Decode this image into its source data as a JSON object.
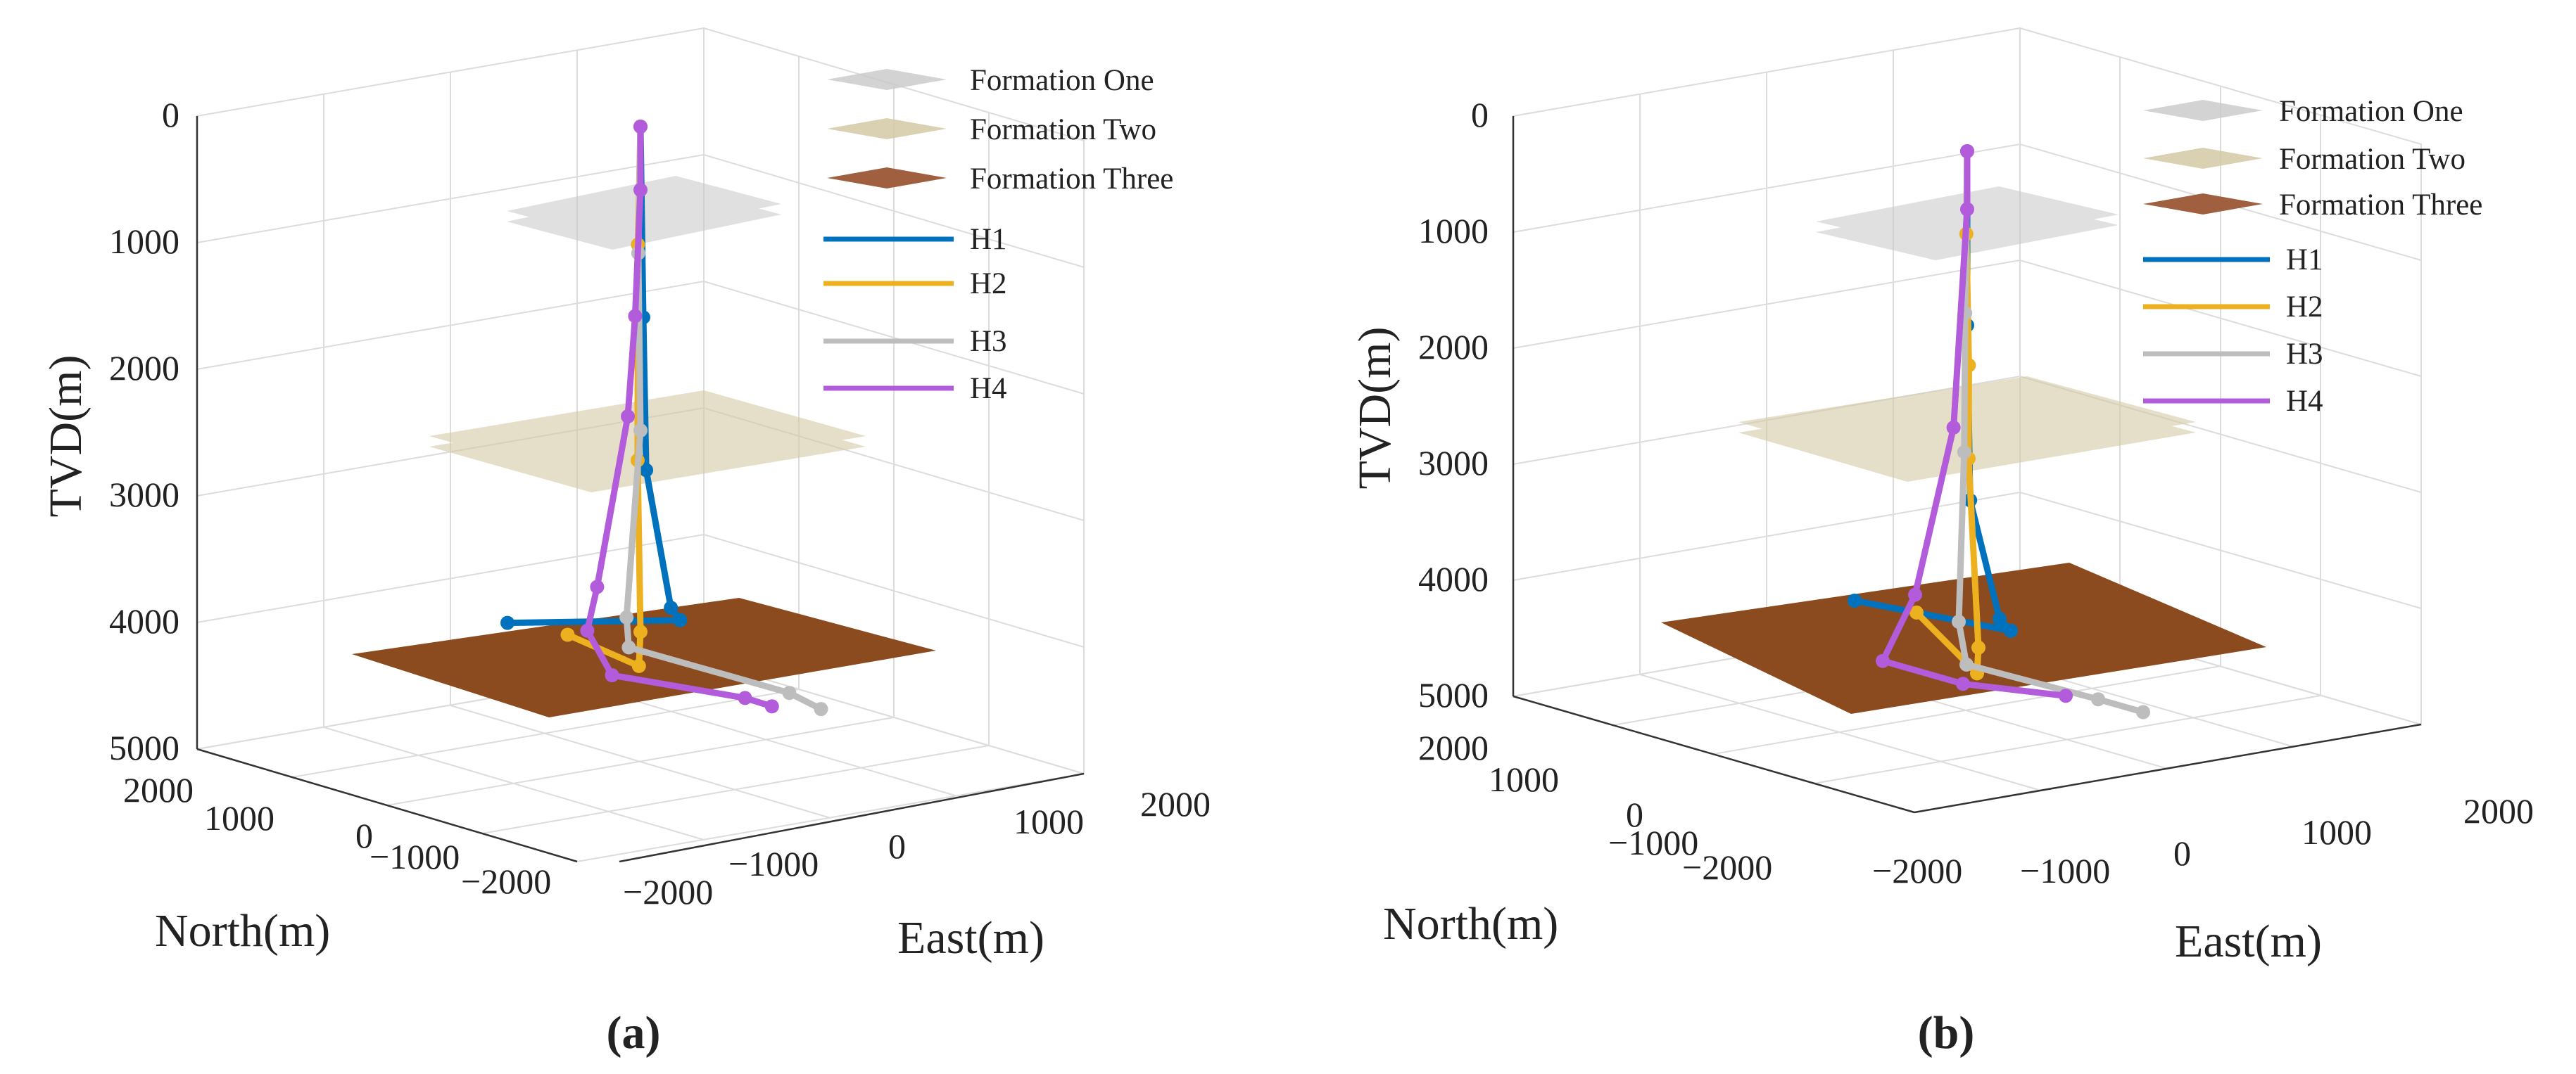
{
  "chart_data": [
    {
      "panel": "(a)",
      "type": "line3d",
      "title": "",
      "zlabel": "TVD(m)",
      "xlabel": "East(m)",
      "ylabel": "North(m)",
      "z_ticks": [
        "0",
        "1000",
        "2000",
        "3000",
        "4000",
        "5000"
      ],
      "x_ticks": [
        "−2000",
        "−1000",
        "0",
        "1000",
        "2000"
      ],
      "y_ticks": [
        "2000",
        "1000",
        "0",
        "−1000",
        "−2000"
      ],
      "zlim": [
        0,
        5000
      ],
      "xlim": [
        -2000,
        2000
      ],
      "ylim": [
        -2000,
        2000
      ],
      "formations": [
        {
          "name": "Formation One",
          "tvd": 800,
          "color": "#b8b8b8"
        },
        {
          "name": "Formation Two",
          "tvd": 2550,
          "color": "#d4c9a4"
        },
        {
          "name": "Formation Three",
          "tvd": 4250,
          "color": "#8b4b1e"
        }
      ],
      "series": [
        {
          "name": "H1",
          "color": "#0072BD",
          "points": [
            [
              0,
              0,
              0
            ],
            [
              30,
              0,
              1500
            ],
            [
              60,
              0,
              2700
            ],
            [
              120,
              -150,
              3800
            ],
            [
              150,
              -200,
              3900
            ],
            [
              -600,
              600,
              3950
            ]
          ]
        },
        {
          "name": "H2",
          "color": "#EDB120",
          "points": [
            [
              0,
              0,
              0
            ],
            [
              80,
              80,
              900
            ],
            [
              90,
              90,
              2600
            ],
            [
              400,
              300,
              3850
            ],
            [
              450,
              350,
              4100
            ],
            [
              -100,
              500,
              3950
            ]
          ]
        },
        {
          "name": "H3",
          "color": "#BDBDBD",
          "points": [
            [
              0,
              0,
              0
            ],
            [
              -10,
              10,
              1000
            ],
            [
              0,
              0,
              2400
            ],
            [
              -120,
              20,
              3900
            ],
            [
              -150,
              -20,
              4150
            ],
            [
              500,
              -800,
              4500
            ],
            [
              700,
              -900,
              4600
            ]
          ]
        },
        {
          "name": "H4",
          "color": "#B25BDB",
          "points": [
            [
              0,
              0,
              0
            ],
            [
              0,
              0,
              500
            ],
            [
              -30,
              20,
              1500
            ],
            [
              -80,
              40,
              2300
            ],
            [
              -350,
              80,
              3700
            ],
            [
              -400,
              120,
              4050
            ],
            [
              -300,
              0,
              4400
            ],
            [
              300,
              -600,
              4550
            ],
            [
              450,
              -700,
              4600
            ]
          ]
        }
      ]
    },
    {
      "panel": "(b)",
      "type": "line3d",
      "title": "",
      "zlabel": "TVD(m)",
      "xlabel": "East(m)",
      "ylabel": "North(m)",
      "z_ticks": [
        "0",
        "1000",
        "2000",
        "3000",
        "4000",
        "5000"
      ],
      "x_ticks": [
        "−2000",
        "−1000",
        "0",
        "1000",
        "2000"
      ],
      "y_ticks": [
        "2000",
        "1000",
        "0",
        "−1000",
        "−2000"
      ],
      "zlim": [
        0,
        5000
      ],
      "xlim": [
        -2000,
        2000
      ],
      "ylim": [
        -2000,
        2000
      ],
      "formations": [
        {
          "name": "Formation One",
          "tvd": 800,
          "color": "#b8b8b8"
        },
        {
          "name": "Formation Two",
          "tvd": 2550,
          "color": "#d4c9a4"
        },
        {
          "name": "Formation Three",
          "tvd": 4250,
          "color": "#8b4b1e"
        }
      ],
      "series": [
        {
          "name": "H1",
          "color": "#0072BD",
          "points": [
            [
              0,
              0,
              0
            ],
            [
              0,
              0,
              1500
            ],
            [
              30,
              0,
              3000
            ],
            [
              200,
              -100,
              4000
            ],
            [
              250,
              -150,
              4100
            ],
            [
              -500,
              500,
              3900
            ]
          ]
        },
        {
          "name": "H2",
          "color": "#EDB120",
          "points": [
            [
              0,
              0,
              0
            ],
            [
              30,
              30,
              700
            ],
            [
              120,
              80,
              1800
            ],
            [
              130,
              90,
              2600
            ],
            [
              500,
              300,
              4100
            ],
            [
              550,
              350,
              4300
            ],
            [
              0,
              400,
              3900
            ]
          ]
        },
        {
          "name": "H3",
          "color": "#BDBDBD",
          "points": [
            [
              0,
              0,
              0
            ],
            [
              -20,
              0,
              1400
            ],
            [
              -30,
              0,
              2600
            ],
            [
              -150,
              -50,
              4100
            ],
            [
              -200,
              -150,
              4500
            ],
            [
              300,
              -800,
              4800
            ],
            [
              500,
              -1000,
              4900
            ]
          ]
        },
        {
          "name": "H4",
          "color": "#B25BDB",
          "points": [
            [
              0,
              0,
              0
            ],
            [
              0,
              0,
              500
            ],
            [
              -100,
              30,
              2400
            ],
            [
              -400,
              100,
              3900
            ],
            [
              -600,
              200,
              4500
            ],
            [
              -300,
              -200,
              4700
            ],
            [
              100,
              -700,
              4800
            ]
          ]
        }
      ]
    }
  ],
  "legend_entries": [
    "Formation One",
    "Formation Two",
    "Formation Three",
    "H1",
    "H2",
    "H3",
    "H4"
  ]
}
